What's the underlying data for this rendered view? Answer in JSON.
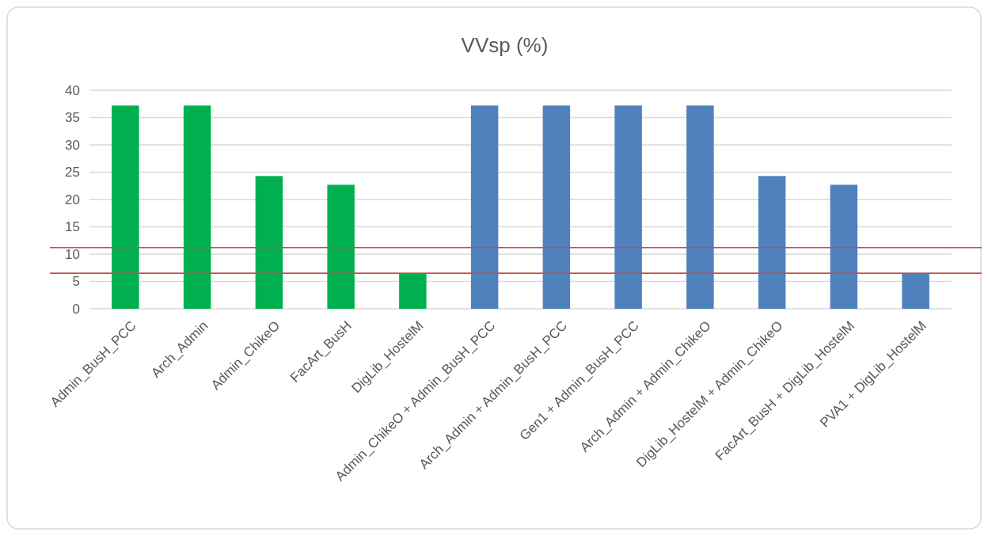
{
  "chart_data": {
    "type": "bar",
    "title": "VVsp (%)",
    "categories": [
      "Admin_BusH_PCC",
      "Arch_Admin",
      "Admin_ChikeO",
      "FacArt_BusH",
      "DigLib_HostelM",
      "Admin_ChikeO + Admin_BusH_PCC",
      "Arch_Admin + Admin_BusH_PCC",
      "Gen1 + Admin_BusH_PCC",
      "Arch_Admin + Admin_ChikeO",
      "DigLib_HostelM + Admin_ChikeO",
      "FacArt_BusH + DigLib_HostelM",
      "PVA1 + DigLib_HostelM"
    ],
    "values": [
      37.2,
      37.2,
      24.3,
      22.7,
      6.5,
      37.2,
      37.2,
      37.2,
      37.2,
      24.3,
      22.7,
      6.5
    ],
    "colors": [
      "#00b050",
      "#00b050",
      "#00b050",
      "#00b050",
      "#00b050",
      "#4f81bd",
      "#4f81bd",
      "#4f81bd",
      "#4f81bd",
      "#4f81bd",
      "#4f81bd",
      "#4f81bd"
    ],
    "ylim": [
      0,
      40
    ],
    "yticks": [
      0,
      5,
      10,
      15,
      20,
      25,
      30,
      35,
      40
    ],
    "grid": "y",
    "ref_lines": [
      {
        "axis": "y",
        "value": 11.2,
        "color": "#c0504d"
      },
      {
        "axis": "y",
        "value": 6.5,
        "color": "#c0504d"
      }
    ]
  }
}
